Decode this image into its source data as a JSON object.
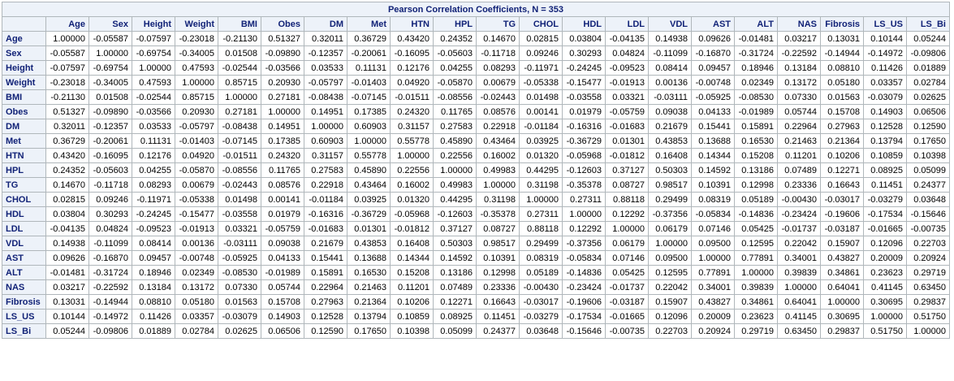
{
  "table": {
    "title": "Pearson Correlation Coefficients, N = 353",
    "columns": [
      "Age",
      "Sex",
      "Height",
      "Weight",
      "BMI",
      "Obes",
      "DM",
      "Met",
      "HTN",
      "HPL",
      "TG",
      "CHOL",
      "HDL",
      "LDL",
      "VDL",
      "AST",
      "ALT",
      "NAS",
      "Fibrosis",
      "LS_US",
      "LS_Bi"
    ],
    "rows": [
      {
        "label": "Age",
        "values": [
          "1.00000",
          "-0.05587",
          "-0.07597",
          "-0.23018",
          "-0.21130",
          "0.51327",
          "0.32011",
          "0.36729",
          "0.43420",
          "0.24352",
          "0.14670",
          "0.02815",
          "0.03804",
          "-0.04135",
          "0.14938",
          "0.09626",
          "-0.01481",
          "0.03217",
          "0.13031",
          "0.10144",
          "0.05244"
        ]
      },
      {
        "label": "Sex",
        "values": [
          "-0.05587",
          "1.00000",
          "-0.69754",
          "-0.34005",
          "0.01508",
          "-0.09890",
          "-0.12357",
          "-0.20061",
          "-0.16095",
          "-0.05603",
          "-0.11718",
          "0.09246",
          "0.30293",
          "0.04824",
          "-0.11099",
          "-0.16870",
          "-0.31724",
          "-0.22592",
          "-0.14944",
          "-0.14972",
          "-0.09806"
        ]
      },
      {
        "label": "Height",
        "values": [
          "-0.07597",
          "-0.69754",
          "1.00000",
          "0.47593",
          "-0.02544",
          "-0.03566",
          "0.03533",
          "0.11131",
          "0.12176",
          "0.04255",
          "0.08293",
          "-0.11971",
          "-0.24245",
          "-0.09523",
          "0.08414",
          "0.09457",
          "0.18946",
          "0.13184",
          "0.08810",
          "0.11426",
          "0.01889"
        ]
      },
      {
        "label": "Weight",
        "values": [
          "-0.23018",
          "-0.34005",
          "0.47593",
          "1.00000",
          "0.85715",
          "0.20930",
          "-0.05797",
          "-0.01403",
          "0.04920",
          "-0.05870",
          "0.00679",
          "-0.05338",
          "-0.15477",
          "-0.01913",
          "0.00136",
          "-0.00748",
          "0.02349",
          "0.13172",
          "0.05180",
          "0.03357",
          "0.02784"
        ]
      },
      {
        "label": "BMI",
        "values": [
          "-0.21130",
          "0.01508",
          "-0.02544",
          "0.85715",
          "1.00000",
          "0.27181",
          "-0.08438",
          "-0.07145",
          "-0.01511",
          "-0.08556",
          "-0.02443",
          "0.01498",
          "-0.03558",
          "0.03321",
          "-0.03111",
          "-0.05925",
          "-0.08530",
          "0.07330",
          "0.01563",
          "-0.03079",
          "0.02625"
        ]
      },
      {
        "label": "Obes",
        "values": [
          "0.51327",
          "-0.09890",
          "-0.03566",
          "0.20930",
          "0.27181",
          "1.00000",
          "0.14951",
          "0.17385",
          "0.24320",
          "0.11765",
          "0.08576",
          "0.00141",
          "0.01979",
          "-0.05759",
          "0.09038",
          "0.04133",
          "-0.01989",
          "0.05744",
          "0.15708",
          "0.14903",
          "0.06506"
        ]
      },
      {
        "label": "DM",
        "values": [
          "0.32011",
          "-0.12357",
          "0.03533",
          "-0.05797",
          "-0.08438",
          "0.14951",
          "1.00000",
          "0.60903",
          "0.31157",
          "0.27583",
          "0.22918",
          "-0.01184",
          "-0.16316",
          "-0.01683",
          "0.21679",
          "0.15441",
          "0.15891",
          "0.22964",
          "0.27963",
          "0.12528",
          "0.12590"
        ]
      },
      {
        "label": "Met",
        "values": [
          "0.36729",
          "-0.20061",
          "0.11131",
          "-0.01403",
          "-0.07145",
          "0.17385",
          "0.60903",
          "1.00000",
          "0.55778",
          "0.45890",
          "0.43464",
          "0.03925",
          "-0.36729",
          "0.01301",
          "0.43853",
          "0.13688",
          "0.16530",
          "0.21463",
          "0.21364",
          "0.13794",
          "0.17650"
        ]
      },
      {
        "label": "HTN",
        "values": [
          "0.43420",
          "-0.16095",
          "0.12176",
          "0.04920",
          "-0.01511",
          "0.24320",
          "0.31157",
          "0.55778",
          "1.00000",
          "0.22556",
          "0.16002",
          "0.01320",
          "-0.05968",
          "-0.01812",
          "0.16408",
          "0.14344",
          "0.15208",
          "0.11201",
          "0.10206",
          "0.10859",
          "0.10398"
        ]
      },
      {
        "label": "HPL",
        "values": [
          "0.24352",
          "-0.05603",
          "0.04255",
          "-0.05870",
          "-0.08556",
          "0.11765",
          "0.27583",
          "0.45890",
          "0.22556",
          "1.00000",
          "0.49983",
          "0.44295",
          "-0.12603",
          "0.37127",
          "0.50303",
          "0.14592",
          "0.13186",
          "0.07489",
          "0.12271",
          "0.08925",
          "0.05099"
        ]
      },
      {
        "label": "TG",
        "values": [
          "0.14670",
          "-0.11718",
          "0.08293",
          "0.00679",
          "-0.02443",
          "0.08576",
          "0.22918",
          "0.43464",
          "0.16002",
          "0.49983",
          "1.00000",
          "0.31198",
          "-0.35378",
          "0.08727",
          "0.98517",
          "0.10391",
          "0.12998",
          "0.23336",
          "0.16643",
          "0.11451",
          "0.24377"
        ]
      },
      {
        "label": "CHOL",
        "values": [
          "0.02815",
          "0.09246",
          "-0.11971",
          "-0.05338",
          "0.01498",
          "0.00141",
          "-0.01184",
          "0.03925",
          "0.01320",
          "0.44295",
          "0.31198",
          "1.00000",
          "0.27311",
          "0.88118",
          "0.29499",
          "0.08319",
          "0.05189",
          "-0.00430",
          "-0.03017",
          "-0.03279",
          "0.03648"
        ]
      },
      {
        "label": "HDL",
        "values": [
          "0.03804",
          "0.30293",
          "-0.24245",
          "-0.15477",
          "-0.03558",
          "0.01979",
          "-0.16316",
          "-0.36729",
          "-0.05968",
          "-0.12603",
          "-0.35378",
          "0.27311",
          "1.00000",
          "0.12292",
          "-0.37356",
          "-0.05834",
          "-0.14836",
          "-0.23424",
          "-0.19606",
          "-0.17534",
          "-0.15646"
        ]
      },
      {
        "label": "LDL",
        "values": [
          "-0.04135",
          "0.04824",
          "-0.09523",
          "-0.01913",
          "0.03321",
          "-0.05759",
          "-0.01683",
          "0.01301",
          "-0.01812",
          "0.37127",
          "0.08727",
          "0.88118",
          "0.12292",
          "1.00000",
          "0.06179",
          "0.07146",
          "0.05425",
          "-0.01737",
          "-0.03187",
          "-0.01665",
          "-0.00735"
        ]
      },
      {
        "label": "VDL",
        "values": [
          "0.14938",
          "-0.11099",
          "0.08414",
          "0.00136",
          "-0.03111",
          "0.09038",
          "0.21679",
          "0.43853",
          "0.16408",
          "0.50303",
          "0.98517",
          "0.29499",
          "-0.37356",
          "0.06179",
          "1.00000",
          "0.09500",
          "0.12595",
          "0.22042",
          "0.15907",
          "0.12096",
          "0.22703"
        ]
      },
      {
        "label": "AST",
        "values": [
          "0.09626",
          "-0.16870",
          "0.09457",
          "-0.00748",
          "-0.05925",
          "0.04133",
          "0.15441",
          "0.13688",
          "0.14344",
          "0.14592",
          "0.10391",
          "0.08319",
          "-0.05834",
          "0.07146",
          "0.09500",
          "1.00000",
          "0.77891",
          "0.34001",
          "0.43827",
          "0.20009",
          "0.20924"
        ]
      },
      {
        "label": "ALT",
        "values": [
          "-0.01481",
          "-0.31724",
          "0.18946",
          "0.02349",
          "-0.08530",
          "-0.01989",
          "0.15891",
          "0.16530",
          "0.15208",
          "0.13186",
          "0.12998",
          "0.05189",
          "-0.14836",
          "0.05425",
          "0.12595",
          "0.77891",
          "1.00000",
          "0.39839",
          "0.34861",
          "0.23623",
          "0.29719"
        ]
      },
      {
        "label": "NAS",
        "values": [
          "0.03217",
          "-0.22592",
          "0.13184",
          "0.13172",
          "0.07330",
          "0.05744",
          "0.22964",
          "0.21463",
          "0.11201",
          "0.07489",
          "0.23336",
          "-0.00430",
          "-0.23424",
          "-0.01737",
          "0.22042",
          "0.34001",
          "0.39839",
          "1.00000",
          "0.64041",
          "0.41145",
          "0.63450"
        ]
      },
      {
        "label": "Fibrosis",
        "values": [
          "0.13031",
          "-0.14944",
          "0.08810",
          "0.05180",
          "0.01563",
          "0.15708",
          "0.27963",
          "0.21364",
          "0.10206",
          "0.12271",
          "0.16643",
          "-0.03017",
          "-0.19606",
          "-0.03187",
          "0.15907",
          "0.43827",
          "0.34861",
          "0.64041",
          "1.00000",
          "0.30695",
          "0.29837"
        ]
      },
      {
        "label": "LS_US",
        "values": [
          "0.10144",
          "-0.14972",
          "0.11426",
          "0.03357",
          "-0.03079",
          "0.14903",
          "0.12528",
          "0.13794",
          "0.10859",
          "0.08925",
          "0.11451",
          "-0.03279",
          "-0.17534",
          "-0.01665",
          "0.12096",
          "0.20009",
          "0.23623",
          "0.41145",
          "0.30695",
          "1.00000",
          "0.51750"
        ]
      },
      {
        "label": "LS_Bi",
        "values": [
          "0.05244",
          "-0.09806",
          "0.01889",
          "0.02784",
          "0.02625",
          "0.06506",
          "0.12590",
          "0.17650",
          "0.10398",
          "0.05099",
          "0.24377",
          "0.03648",
          "-0.15646",
          "-0.00735",
          "0.22703",
          "0.20924",
          "0.29719",
          "0.63450",
          "0.29837",
          "0.51750",
          "1.00000"
        ]
      }
    ]
  },
  "colors": {
    "header_bg": "#edf2f9",
    "header_text": "#112277",
    "cell_bg": "#ffffff",
    "border": "#b0b7bb"
  }
}
